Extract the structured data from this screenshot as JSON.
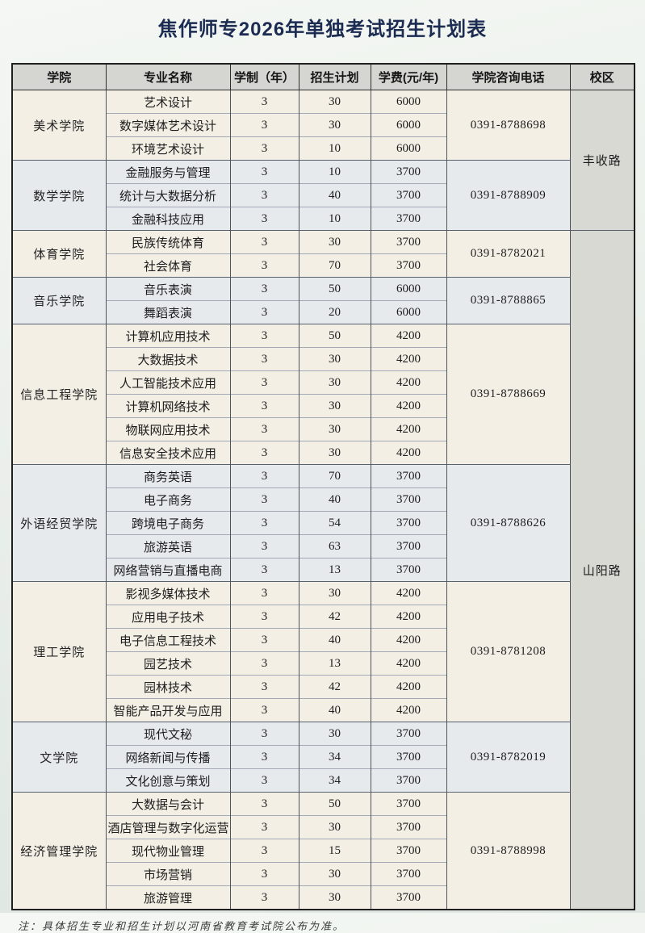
{
  "title": "焦作师专2026年单独考试招生计划表",
  "note": "注：具体招生专业和招生计划以河南省教育考试院公布为准。",
  "colors": {
    "title_text": "#1c2b52",
    "header_bg": "#d5d5d2",
    "campus_bg": "#d9d9d4",
    "section_tint_cream": "#f4efe5",
    "section_tint_blue": "#e7eaed",
    "outer_border": "#1f1f1f"
  },
  "table": {
    "headers": [
      "学院",
      "专业名称",
      "学制（年）",
      "招生计划",
      "学费(元/年)",
      "学院咨询电话",
      "校区"
    ],
    "sections": [
      {
        "college": "美术学院",
        "phone": "0391-8788698",
        "tint": "cream",
        "majors": [
          {
            "name": "艺术设计",
            "years": "3",
            "plan": "30",
            "tuition": "6000"
          },
          {
            "name": "数字媒体艺术设计",
            "years": "3",
            "plan": "30",
            "tuition": "6000"
          },
          {
            "name": "环境艺术设计",
            "years": "3",
            "plan": "10",
            "tuition": "6000"
          }
        ]
      },
      {
        "college": "数学学院",
        "phone": "0391-8788909",
        "tint": "blue",
        "majors": [
          {
            "name": "金融服务与管理",
            "years": "3",
            "plan": "10",
            "tuition": "3700"
          },
          {
            "name": "统计与大数据分析",
            "years": "3",
            "plan": "40",
            "tuition": "3700"
          },
          {
            "name": "金融科技应用",
            "years": "3",
            "plan": "10",
            "tuition": "3700"
          }
        ]
      },
      {
        "college": "体育学院",
        "phone": "0391-8782021",
        "tint": "cream",
        "majors": [
          {
            "name": "民族传统体育",
            "years": "3",
            "plan": "30",
            "tuition": "3700"
          },
          {
            "name": "社会体育",
            "years": "3",
            "plan": "70",
            "tuition": "3700"
          }
        ]
      },
      {
        "college": "音乐学院",
        "phone": "0391-8788865",
        "tint": "blue",
        "majors": [
          {
            "name": "音乐表演",
            "years": "3",
            "plan": "50",
            "tuition": "6000"
          },
          {
            "name": "舞蹈表演",
            "years": "3",
            "plan": "20",
            "tuition": "6000"
          }
        ]
      },
      {
        "college": "信息工程学院",
        "phone": "0391-8788669",
        "tint": "cream",
        "majors": [
          {
            "name": "计算机应用技术",
            "years": "3",
            "plan": "50",
            "tuition": "4200"
          },
          {
            "name": "大数据技术",
            "years": "3",
            "plan": "30",
            "tuition": "4200"
          },
          {
            "name": "人工智能技术应用",
            "years": "3",
            "plan": "30",
            "tuition": "4200"
          },
          {
            "name": "计算机网络技术",
            "years": "3",
            "plan": "30",
            "tuition": "4200"
          },
          {
            "name": "物联网应用技术",
            "years": "3",
            "plan": "30",
            "tuition": "4200"
          },
          {
            "name": "信息安全技术应用",
            "years": "3",
            "plan": "30",
            "tuition": "4200"
          }
        ]
      },
      {
        "college": "外语经贸学院",
        "phone": "0391-8788626",
        "tint": "blue",
        "majors": [
          {
            "name": "商务英语",
            "years": "3",
            "plan": "70",
            "tuition": "3700"
          },
          {
            "name": "电子商务",
            "years": "3",
            "plan": "40",
            "tuition": "3700"
          },
          {
            "name": "跨境电子商务",
            "years": "3",
            "plan": "54",
            "tuition": "3700"
          },
          {
            "name": "旅游英语",
            "years": "3",
            "plan": "63",
            "tuition": "3700"
          },
          {
            "name": "网络营销与直播电商",
            "years": "3",
            "plan": "13",
            "tuition": "3700"
          }
        ]
      },
      {
        "college": "理工学院",
        "phone": "0391-8781208",
        "tint": "cream",
        "majors": [
          {
            "name": "影视多媒体技术",
            "years": "3",
            "plan": "30",
            "tuition": "4200"
          },
          {
            "name": "应用电子技术",
            "years": "3",
            "plan": "42",
            "tuition": "4200"
          },
          {
            "name": "电子信息工程技术",
            "years": "3",
            "plan": "40",
            "tuition": "4200"
          },
          {
            "name": "园艺技术",
            "years": "3",
            "plan": "13",
            "tuition": "4200"
          },
          {
            "name": "园林技术",
            "years": "3",
            "plan": "42",
            "tuition": "4200"
          },
          {
            "name": "智能产品开发与应用",
            "years": "3",
            "plan": "40",
            "tuition": "4200"
          }
        ]
      },
      {
        "college": "文学院",
        "phone": "0391-8782019",
        "tint": "blue",
        "majors": [
          {
            "name": "现代文秘",
            "years": "3",
            "plan": "30",
            "tuition": "3700"
          },
          {
            "name": "网络新闻与传播",
            "years": "3",
            "plan": "34",
            "tuition": "3700"
          },
          {
            "name": "文化创意与策划",
            "years": "3",
            "plan": "34",
            "tuition": "3700"
          }
        ]
      },
      {
        "college": "经济管理学院",
        "phone": "0391-8788998",
        "tint": "cream",
        "majors": [
          {
            "name": "大数据与会计",
            "years": "3",
            "plan": "50",
            "tuition": "3700"
          },
          {
            "name": "酒店管理与数字化运营",
            "years": "3",
            "plan": "30",
            "tuition": "3700"
          },
          {
            "name": "现代物业管理",
            "years": "3",
            "plan": "15",
            "tuition": "3700"
          },
          {
            "name": "市场营销",
            "years": "3",
            "plan": "30",
            "tuition": "3700"
          },
          {
            "name": "旅游管理",
            "years": "3",
            "plan": "30",
            "tuition": "3700"
          }
        ]
      }
    ],
    "campuses": [
      {
        "name": "丰收路",
        "sections": [
          0,
          1
        ]
      },
      {
        "name": "山阳路",
        "sections": [
          2,
          8
        ]
      }
    ]
  }
}
